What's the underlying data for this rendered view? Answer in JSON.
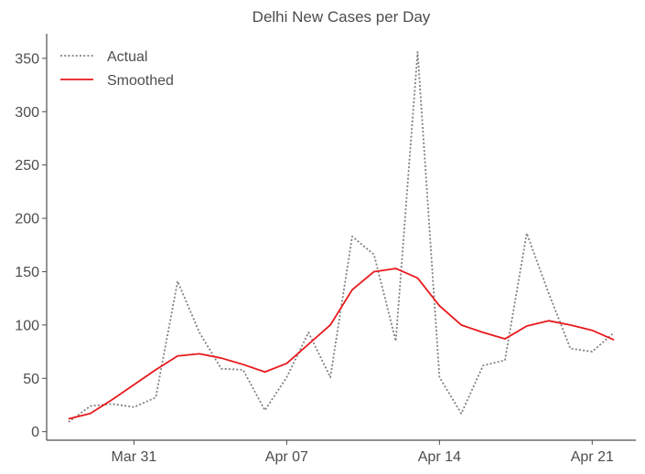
{
  "chart_data": {
    "type": "line",
    "title": "Delhi New Cases per Day",
    "xlabel": "",
    "ylabel": "",
    "x_axis": {
      "type": "date",
      "range": [
        "2020-03-27",
        "2020-04-23"
      ],
      "ticks": [
        {
          "date": "2020-03-31",
          "label": "Mar 31"
        },
        {
          "date": "2020-04-07",
          "label": "Apr 07"
        },
        {
          "date": "2020-04-14",
          "label": "Apr 14"
        },
        {
          "date": "2020-04-21",
          "label": "Apr 21"
        }
      ]
    },
    "y_axis": {
      "range": [
        -8,
        373
      ],
      "ticks": [
        0,
        50,
        100,
        150,
        200,
        250,
        300,
        350
      ]
    },
    "grid": false,
    "legend": {
      "position": "top-left"
    },
    "x": [
      "2020-03-28",
      "2020-03-29",
      "2020-03-30",
      "2020-03-31",
      "2020-04-01",
      "2020-04-02",
      "2020-04-03",
      "2020-04-04",
      "2020-04-05",
      "2020-04-06",
      "2020-04-07",
      "2020-04-08",
      "2020-04-09",
      "2020-04-10",
      "2020-04-11",
      "2020-04-12",
      "2020-04-13",
      "2020-04-14",
      "2020-04-15",
      "2020-04-16",
      "2020-04-17",
      "2020-04-18",
      "2020-04-19",
      "2020-04-20",
      "2020-04-21",
      "2020-04-22"
    ],
    "series": [
      {
        "name": "Actual",
        "style": "dotted",
        "color": "#808080",
        "values": [
          9,
          24,
          26,
          23,
          32,
          141,
          93,
          59,
          58,
          20,
          51,
          93,
          51,
          183,
          166,
          85,
          356,
          51,
          17,
          62,
          67,
          186,
          130,
          78,
          75,
          93
        ]
      },
      {
        "name": "Smoothed",
        "style": "solid",
        "color": "#e8191c",
        "values": [
          12,
          17,
          30,
          44,
          58,
          71,
          73,
          69,
          63,
          56,
          64,
          82,
          100,
          133,
          150,
          153,
          144,
          118,
          100,
          93,
          87,
          99,
          104,
          100,
          95,
          86
        ]
      }
    ]
  }
}
